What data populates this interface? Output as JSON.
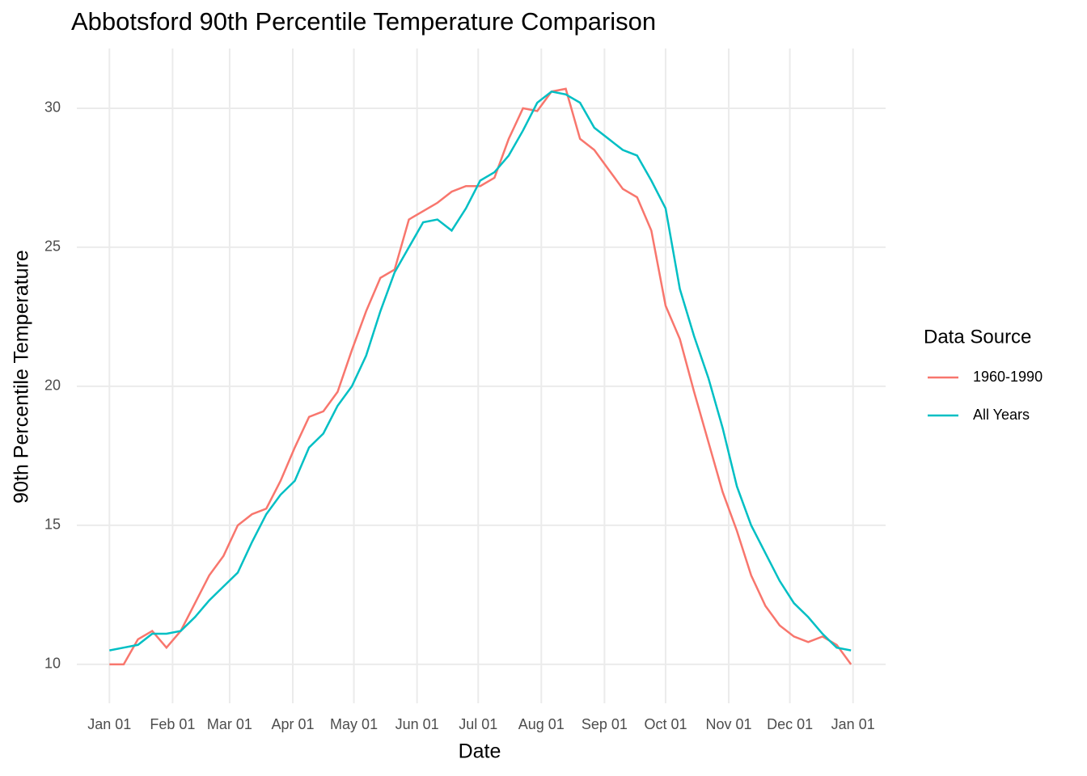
{
  "chart_data": {
    "type": "line",
    "title": "Abbotsford 90th Percentile Temperature Comparison",
    "x_label": "Date",
    "y_label": "90th Percentile Temperature",
    "legend_title": "Data Source",
    "legend_position": "right",
    "grid": true,
    "x": [
      1,
      8,
      15,
      22,
      29,
      36,
      43,
      50,
      57,
      64,
      71,
      78,
      85,
      92,
      99,
      106,
      113,
      120,
      127,
      134,
      141,
      148,
      155,
      162,
      169,
      176,
      183,
      190,
      197,
      204,
      211,
      218,
      225,
      232,
      239,
      246,
      253,
      260,
      267,
      274,
      281,
      288,
      295,
      302,
      309,
      316,
      323,
      330,
      337,
      344,
      351,
      358,
      365
    ],
    "series": [
      {
        "name": "1960-1990",
        "color": "#F8766D",
        "values": [
          10.0,
          10.0,
          10.9,
          11.2,
          10.6,
          11.2,
          12.2,
          13.2,
          13.9,
          15.0,
          15.4,
          15.6,
          16.6,
          17.8,
          18.9,
          19.1,
          19.8,
          21.3,
          22.7,
          23.9,
          24.2,
          26.0,
          26.3,
          26.6,
          27.0,
          27.2,
          27.2,
          27.5,
          28.9,
          30.0,
          29.9,
          30.6,
          30.7,
          28.9,
          28.5,
          27.8,
          27.1,
          26.8,
          25.6,
          22.9,
          21.7,
          19.8,
          18.0,
          16.2,
          14.8,
          13.2,
          12.1,
          11.4,
          11.0,
          10.8,
          11.0,
          10.7,
          10.0
        ]
      },
      {
        "name": "All Years",
        "color": "#00BFC4",
        "values": [
          10.5,
          10.6,
          10.7,
          11.1,
          11.1,
          11.2,
          11.7,
          12.3,
          12.8,
          13.3,
          14.4,
          15.4,
          16.1,
          16.6,
          17.8,
          18.3,
          19.3,
          20.0,
          21.1,
          22.7,
          24.1,
          25.0,
          25.9,
          26.0,
          25.6,
          26.4,
          27.4,
          27.7,
          28.3,
          29.2,
          30.2,
          30.6,
          30.5,
          30.2,
          29.3,
          28.9,
          28.5,
          28.3,
          27.4,
          26.4,
          23.5,
          21.8,
          20.3,
          18.5,
          16.4,
          15.0,
          14.0,
          13.0,
          12.2,
          11.7,
          11.1,
          10.6,
          10.5
        ]
      }
    ],
    "xlim": [
      -15,
      382
    ],
    "xticks": [
      {
        "value": 1,
        "label": "Jan 01"
      },
      {
        "value": 32,
        "label": "Feb 01"
      },
      {
        "value": 60,
        "label": "Mar 01"
      },
      {
        "value": 91,
        "label": "Apr 01"
      },
      {
        "value": 121,
        "label": "May 01"
      },
      {
        "value": 152,
        "label": "Jun 01"
      },
      {
        "value": 182,
        "label": "Jul 01"
      },
      {
        "value": 213,
        "label": "Aug 01"
      },
      {
        "value": 244,
        "label": "Sep 01"
      },
      {
        "value": 274,
        "label": "Oct 01"
      },
      {
        "value": 305,
        "label": "Nov 01"
      },
      {
        "value": 335,
        "label": "Dec 01"
      },
      {
        "value": 366,
        "label": "Jan 01"
      }
    ],
    "ylim": [
      8.6,
      32.15
    ],
    "yticks": [
      10,
      15,
      20,
      25,
      30
    ]
  }
}
